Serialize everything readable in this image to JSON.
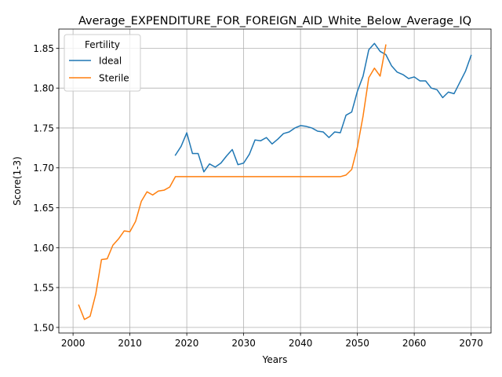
{
  "chart_data": {
    "type": "line",
    "title": "Average_EXPENDITURE_FOR_FOREIGN_AID_White_Below_Average_IQ",
    "xlabel": "Years",
    "ylabel": "Score(1-3)",
    "xlim": [
      1997.5,
      2073.5
    ],
    "ylim": [
      1.493,
      1.874
    ],
    "xticks": [
      2000,
      2010,
      2020,
      2030,
      2040,
      2050,
      2060,
      2070
    ],
    "yticks": [
      1.5,
      1.55,
      1.6,
      1.65,
      1.7,
      1.75,
      1.8,
      1.85
    ],
    "xtick_labels": [
      "2000",
      "2010",
      "2020",
      "2030",
      "2040",
      "2050",
      "2060",
      "2070"
    ],
    "ytick_labels": [
      "1.50",
      "1.55",
      "1.60",
      "1.65",
      "1.70",
      "1.75",
      "1.80",
      "1.85"
    ],
    "grid": true,
    "legend": {
      "title": "Fertility",
      "placement": "upper-left"
    },
    "series": [
      {
        "name": "Ideal",
        "color": "#1f77b4",
        "x": [
          2018,
          2019,
          2020,
          2021,
          2022,
          2023,
          2024,
          2025,
          2026,
          2027,
          2028,
          2029,
          2030,
          2031,
          2032,
          2033,
          2034,
          2035,
          2036,
          2037,
          2038,
          2039,
          2040,
          2041,
          2042,
          2043,
          2044,
          2045,
          2046,
          2047,
          2048,
          2049,
          2050,
          2051,
          2052,
          2053,
          2054,
          2055,
          2056,
          2057,
          2058,
          2059,
          2060,
          2061,
          2062,
          2063,
          2064,
          2065,
          2066,
          2067,
          2068,
          2069,
          2070
        ],
        "y": [
          1.716,
          1.727,
          1.744,
          1.718,
          1.718,
          1.695,
          1.705,
          1.701,
          1.706,
          1.715,
          1.723,
          1.704,
          1.706,
          1.717,
          1.735,
          1.734,
          1.738,
          1.73,
          1.736,
          1.743,
          1.745,
          1.75,
          1.753,
          1.752,
          1.75,
          1.746,
          1.745,
          1.738,
          1.745,
          1.744,
          1.766,
          1.77,
          1.796,
          1.815,
          1.848,
          1.856,
          1.846,
          1.842,
          1.828,
          1.82,
          1.817,
          1.812,
          1.814,
          1.809,
          1.809,
          1.8,
          1.798,
          1.788,
          1.795,
          1.793,
          1.807,
          1.821,
          1.841
        ]
      },
      {
        "name": "Sterile",
        "color": "#ff7f0e",
        "x": [
          2001,
          2002,
          2003,
          2004,
          2005,
          2006,
          2007,
          2008,
          2009,
          2010,
          2011,
          2012,
          2013,
          2014,
          2015,
          2016,
          2017,
          2018,
          2019,
          2020,
          2021,
          2022,
          2023,
          2024,
          2025,
          2026,
          2027,
          2028,
          2029,
          2030,
          2031,
          2032,
          2033,
          2034,
          2035,
          2036,
          2037,
          2038,
          2039,
          2040,
          2041,
          2042,
          2043,
          2044,
          2045,
          2046,
          2047,
          2048,
          2049,
          2050,
          2051,
          2052,
          2053,
          2054,
          2055
        ],
        "y": [
          1.528,
          1.51,
          1.514,
          1.542,
          1.585,
          1.586,
          1.603,
          1.611,
          1.621,
          1.62,
          1.633,
          1.658,
          1.67,
          1.666,
          1.671,
          1.672,
          1.676,
          1.689,
          1.689,
          1.689,
          1.689,
          1.689,
          1.689,
          1.689,
          1.689,
          1.689,
          1.689,
          1.689,
          1.689,
          1.689,
          1.689,
          1.689,
          1.689,
          1.689,
          1.689,
          1.689,
          1.689,
          1.689,
          1.689,
          1.689,
          1.689,
          1.689,
          1.689,
          1.689,
          1.689,
          1.689,
          1.689,
          1.691,
          1.698,
          1.726,
          1.765,
          1.813,
          1.825,
          1.815,
          1.854
        ]
      }
    ]
  }
}
